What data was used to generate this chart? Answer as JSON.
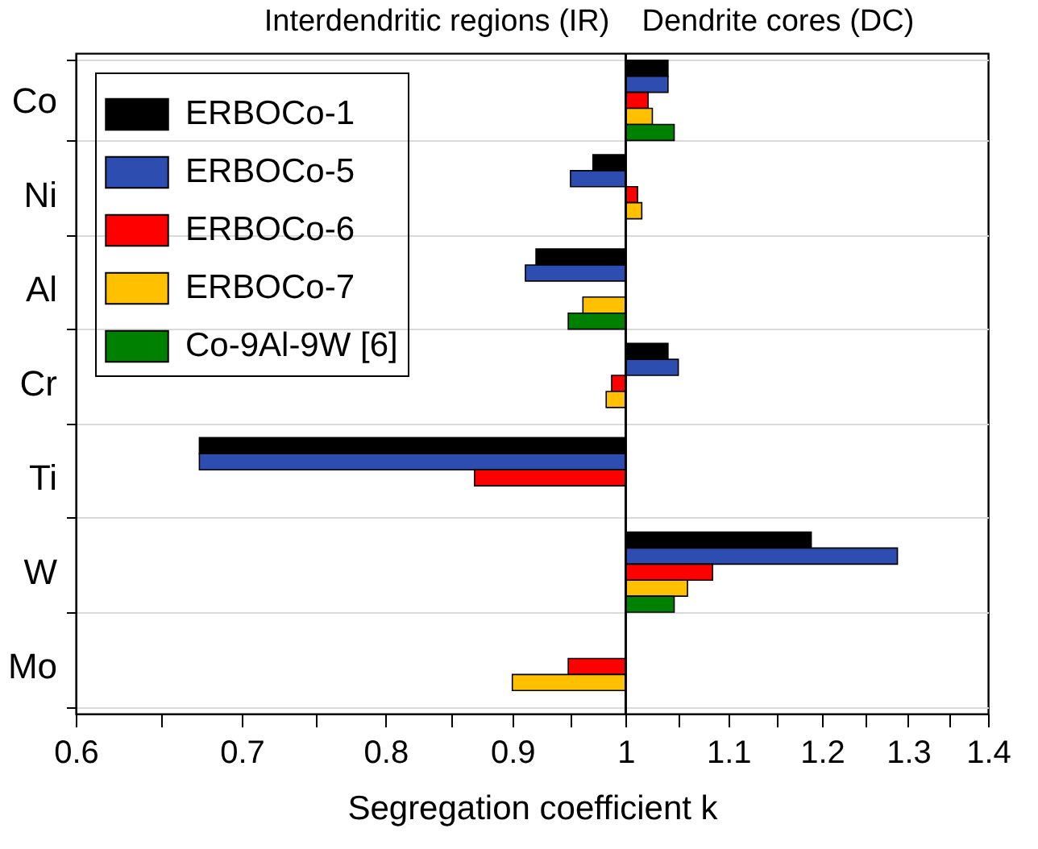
{
  "chart_data": {
    "type": "bar",
    "orientation": "horizontal",
    "xlabel": "Segregation coefficient k",
    "log": "x",
    "categories": [
      "Co",
      "Ni",
      "Al",
      "Cr",
      "Ti",
      "W",
      "Mo"
    ],
    "series": [
      {
        "name": "ERBOCo-1",
        "color": "#000000",
        "base": [
          1,
          1,
          1,
          1,
          1,
          1,
          null
        ],
        "values": [
          0.04,
          -0.03,
          -0.08,
          0.04,
          -0.327,
          0.188,
          null
        ]
      },
      {
        "name": "ERBOCo-5",
        "color": "#2e4db0",
        "base": [
          1,
          1,
          1,
          1,
          1,
          1,
          null
        ],
        "values": [
          0.04,
          -0.05,
          -0.089,
          0.05,
          -0.327,
          0.287,
          null
        ]
      },
      {
        "name": "ERBOCo-6",
        "color": "#ff0000",
        "base": [
          1,
          1,
          null,
          1,
          1,
          1,
          1
        ],
        "values": [
          0.021,
          0.011,
          null,
          -0.013,
          -0.131,
          0.084,
          -0.052
        ]
      },
      {
        "name": "ERBOCo-7",
        "color": "#ffc000",
        "base": [
          1,
          1,
          1,
          1,
          null,
          1,
          1
        ],
        "values": [
          0.025,
          0.015,
          -0.039,
          -0.018,
          null,
          0.059,
          -0.1
        ]
      },
      {
        "name": "Co-9Al-9W [6]",
        "color": "#008000",
        "base": [
          1,
          null,
          1,
          null,
          null,
          1,
          null
        ],
        "values": [
          0.046,
          null,
          -0.052,
          null,
          null,
          0.046,
          null
        ]
      }
    ],
    "xlim": [
      0.6,
      1.4
    ],
    "xticks": [
      0.6,
      {
        "value": 0.65,
        "label": null
      },
      0.7,
      {
        "value": 0.75,
        "label": null
      },
      0.8,
      {
        "value": 0.85,
        "label": null
      },
      0.9,
      {
        "value": 0.95,
        "label": null
      },
      1,
      {
        "value": 1.05,
        "label": null
      },
      1.1,
      {
        "value": 1.15,
        "label": null
      },
      1.2,
      {
        "value": 1.25,
        "label": null
      },
      1.3,
      {
        "value": 1.35,
        "label": null
      },
      1.4
    ],
    "ref_lines": [
      {
        "axis": "x",
        "value": 1,
        "color": "#000000"
      }
    ],
    "annotations": [
      "Interdendritic regions (IR)",
      "Dendrite cores (DC)"
    ],
    "grid": "y",
    "legend": "top left"
  }
}
